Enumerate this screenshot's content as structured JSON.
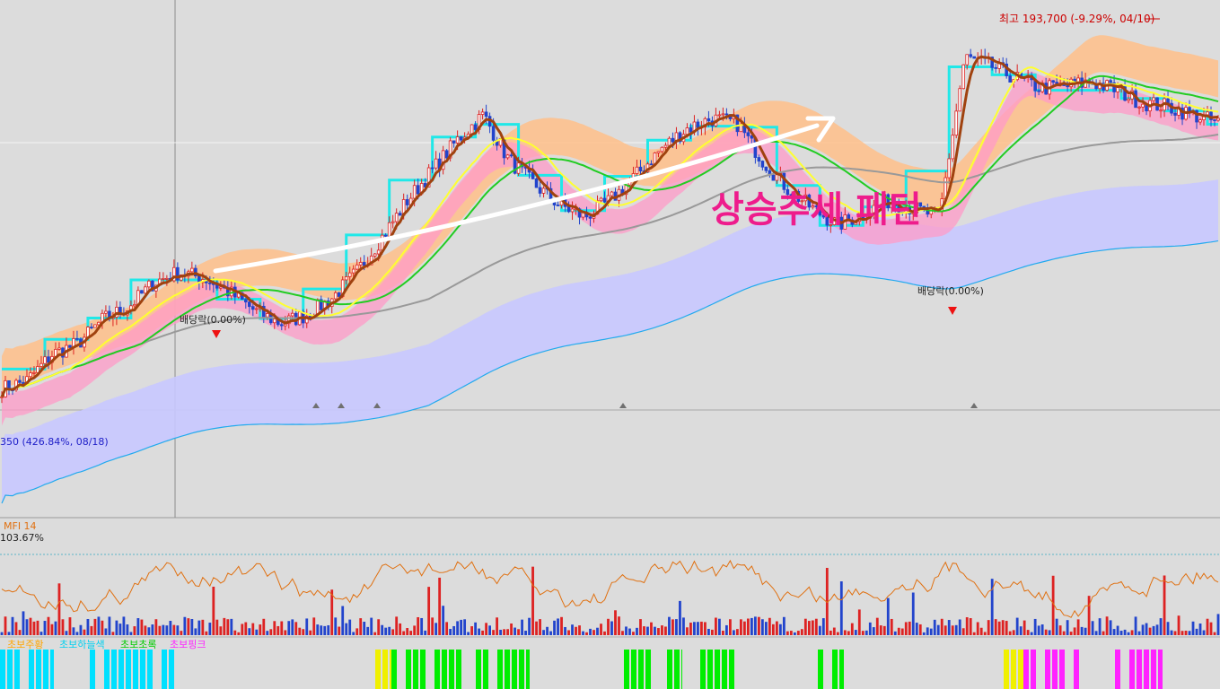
{
  "chart_data": [
    {
      "type": "line",
      "panel": "price",
      "title": "",
      "annotation_title": "상승추세 패턴",
      "high_label": "최고 193,700 (-9.29%, 04/10)",
      "low_label": "350 (426.84%, 08/18)",
      "dividend_labels": [
        "배당락(0.00%)",
        "배당락(0.00%)"
      ],
      "trend": "up",
      "candles_count": 340,
      "price_path": [
        38,
        42,
        55,
        60,
        72,
        78,
        90,
        95,
        92,
        85,
        76,
        70,
        74,
        82,
        95,
        112,
        130,
        145,
        160,
        172,
        150,
        138,
        128,
        122,
        130,
        142,
        155,
        165,
        170,
        168,
        150,
        136,
        126,
        118,
        124,
        130,
        126,
        122,
        200,
        196,
        190,
        185,
        186,
        188,
        184,
        178,
        176,
        172,
        168
      ],
      "moving_averages": [
        {
          "name": "short",
          "color": "#a0420f"
        },
        {
          "name": "mid",
          "color": "#ffff30"
        },
        {
          "name": "long",
          "color": "#22cc22"
        },
        {
          "name": "longest",
          "color": "#999999"
        }
      ],
      "bands": {
        "upper_color": "#ffc08a",
        "lower_color": "#c8c8ff",
        "cloud_color": "#ff9bc8"
      },
      "steps_color": "#20e8e8",
      "grid": false
    },
    {
      "type": "line",
      "panel": "indicator",
      "name": "MFI 14",
      "value_label": "103.67%",
      "overbought_color": "#f0e000",
      "line_color": "#e07010",
      "volume_colors": {
        "up": "#dd2222",
        "down": "#2244cc"
      }
    },
    {
      "type": "bar",
      "panel": "signal-strip",
      "legend": [
        {
          "name": "초보주황",
          "color": "#ffa500"
        },
        {
          "name": "초보하늘색",
          "color": "#00e0ff"
        },
        {
          "name": "초보초록",
          "color": "#00ee00"
        },
        {
          "name": "초보핑크",
          "color": "#ff22ff"
        }
      ]
    }
  ]
}
